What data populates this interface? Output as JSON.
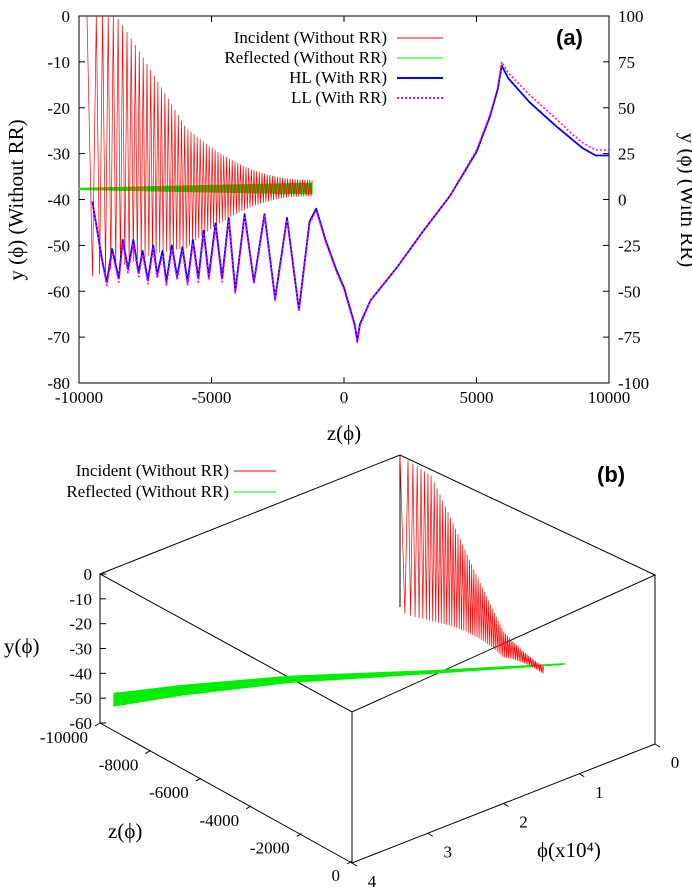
{
  "colors": {
    "incident": "#ff0000",
    "reflected": "#00ee00",
    "hl": "#0000ff",
    "ll": "#ff00ff",
    "panel": "#0000ff"
  },
  "chart_data": [
    {
      "type": "line",
      "panel_label": "(a)",
      "xlabel": "z(ϕ)",
      "ylabel_left": "y (ϕ) (Without RR)",
      "ylabel_right": "y (ϕ) (With RR)",
      "xlim": [
        -10000,
        10000
      ],
      "ylim_left": [
        -80,
        0
      ],
      "ylim_right": [
        -100,
        100
      ],
      "x_ticks": [
        "-10000",
        "-5000",
        "0",
        "5000",
        "10000"
      ],
      "x_tick_values": [
        -10000,
        -5000,
        0,
        5000,
        10000
      ],
      "y_left_ticks": [
        "0",
        "-10",
        "-20",
        "-30",
        "-40",
        "-50",
        "-60",
        "-70",
        "-80"
      ],
      "y_left_tick_values": [
        0,
        -10,
        -20,
        -30,
        -40,
        -50,
        -60,
        -70,
        -80
      ],
      "y_right_ticks": [
        "100",
        "75",
        "50",
        "25",
        "0",
        "-25",
        "-50",
        "-75",
        "-100"
      ],
      "y_right_tick_values": [
        100,
        75,
        50,
        25,
        0,
        -25,
        -50,
        -75,
        -100
      ],
      "legend": [
        "Incident (Without RR)",
        "Reflected (Without RR)",
        "HL (With RR)",
        "LL (With RR)"
      ],
      "series": [
        {
          "name": "Incident (Without RR)",
          "axis": "left",
          "style": "oscillating",
          "x_start": -9700,
          "x_end": -1200,
          "center_start": -25,
          "center_end": -37.5,
          "amp_start": 32,
          "amp_end": 1.8,
          "cycles": 70
        },
        {
          "name": "Reflected (Without RR)",
          "axis": "left",
          "style": "band",
          "x": [
            -10000,
            -1200
          ],
          "y": [
            -37.7,
            -37.7
          ],
          "band_end": [
            -38.8,
            -36.4
          ]
        },
        {
          "name": "HL (With RR)",
          "axis": "right",
          "x": [
            -9500,
            -9100,
            -8950,
            -8750,
            -8500,
            -8350,
            -8150,
            -7950,
            -7750,
            -7600,
            -7400,
            -7200,
            -7050,
            -6850,
            -6700,
            -6500,
            -6300,
            -6100,
            -5900,
            -5700,
            -5500,
            -5300,
            -5100,
            -4850,
            -4600,
            -4350,
            -4100,
            -3750,
            -3400,
            -3000,
            -2600,
            -2150,
            -1700,
            -1300,
            -1050,
            -700,
            -300,
            0,
            200,
            400,
            500,
            600,
            1000,
            2000,
            3000,
            4000,
            5000,
            5500,
            5800,
            5950,
            6200,
            7000,
            8000,
            8500,
            9000,
            9500,
            10000
          ],
          "y": [
            -1,
            -35,
            -45,
            -27,
            -43,
            -22,
            -38,
            -22,
            -40,
            -28,
            -44,
            -25,
            -41,
            -28,
            -45,
            -25,
            -42,
            -26,
            -45,
            -22,
            -43,
            -17,
            -42,
            -13,
            -43,
            -10,
            -50,
            -8,
            -45,
            -8,
            -54,
            -10,
            -60,
            -12,
            -5,
            -22,
            -38,
            -48,
            -58,
            -68,
            -77,
            -68,
            -55,
            -37,
            -17,
            2,
            26,
            45,
            60,
            73,
            66,
            53,
            40,
            34,
            28,
            24,
            24
          ]
        },
        {
          "name": "LL (With RR)",
          "axis": "right",
          "style": "dotted",
          "x": [
            -9500,
            -9100,
            -8950,
            -8750,
            -8500,
            -8350,
            -8150,
            -7950,
            -7750,
            -7600,
            -7400,
            -7200,
            -7050,
            -6850,
            -6700,
            -6500,
            -6300,
            -6100,
            -5900,
            -5700,
            -5500,
            -5300,
            -5100,
            -4850,
            -4600,
            -4350,
            -4100,
            -3750,
            -3400,
            -3000,
            -2600,
            -2150,
            -1700,
            -1300,
            -1050,
            -700,
            -300,
            0,
            200,
            400,
            500,
            600,
            1000,
            2000,
            3000,
            4000,
            5000,
            5500,
            5800,
            5950,
            6200,
            7000,
            8000,
            8500,
            9000,
            9500,
            10000
          ],
          "y": [
            -1,
            -36,
            -47,
            -29,
            -45,
            -24,
            -40,
            -24,
            -42,
            -30,
            -46,
            -27,
            -43,
            -30,
            -47,
            -27,
            -44,
            -28,
            -47,
            -24,
            -45,
            -19,
            -44,
            -15,
            -45,
            -12,
            -51,
            -9,
            -46,
            -9,
            -55,
            -11,
            -61,
            -13,
            -6,
            -23,
            -39,
            -49,
            -59,
            -69,
            -78,
            -69,
            -55,
            -37,
            -17,
            2,
            27,
            46,
            61,
            75,
            69,
            57,
            44,
            37,
            31,
            27,
            27
          ]
        }
      ]
    },
    {
      "type": "line3d",
      "panel_label": "(b)",
      "xlabel": "ϕ(x10⁴)",
      "ylabel": "z(ϕ)",
      "zlabel": "y(ϕ)",
      "phi_ticks": [
        "0",
        "1",
        "2",
        "3",
        "4"
      ],
      "phi_tick_values": [
        0,
        1,
        2,
        3,
        4
      ],
      "z_ticks": [
        "-10000",
        "-8000",
        "-6000",
        "-4000",
        "-2000",
        "0"
      ],
      "z_tick_values": [
        -10000,
        -8000,
        -6000,
        -4000,
        -2000,
        0
      ],
      "y_ticks": [
        "0",
        "-10",
        "-20",
        "-30",
        "-40",
        "-50",
        "-60"
      ],
      "y_tick_values": [
        0,
        -10,
        -20,
        -30,
        -40,
        -50,
        -60
      ],
      "legend": [
        "Incident (Without RR)",
        "Reflected (Without RR)"
      ],
      "series": [
        {
          "name": "Incident (Without RR)",
          "style": "oscillating",
          "phi_start": 0.0,
          "phi_end": 0.05,
          "z_start": -2100,
          "z_end": -9600,
          "center_start": -25,
          "center_end": -49,
          "amp_start": 38,
          "amp_end": 1.5,
          "cycles": 62
        },
        {
          "name": "Reflected (Without RR)",
          "style": "band",
          "phi": [
            0.05,
            0.7,
            1.6,
            2.6,
            3.3
          ],
          "z": [
            -9600,
            -8800,
            -7200,
            -4500,
            -1400
          ],
          "y": [
            -49,
            -48.5,
            -46,
            -40,
            -28
          ],
          "band": [
            2.6,
            2.0,
            1.3,
            0.6,
            0.2
          ]
        }
      ]
    }
  ]
}
